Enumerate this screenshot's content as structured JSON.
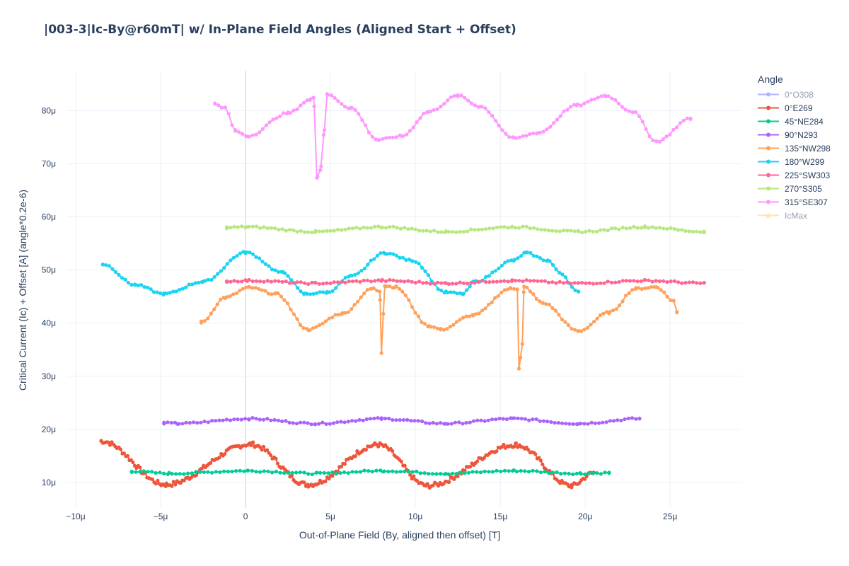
{
  "chart_data": {
    "type": "line",
    "title": "|003-3|Ic-By@r60mT| w/ In-Plane Field Angles (Aligned Start + Offset)",
    "xlabel": "Out-of-Plane Field (By, aligned then offset) [T]",
    "ylabel": "Critical Current (Ic) + Offset [A] (angle*0.2e-6)",
    "xlim": [
      -1.05e-05,
      2.92e-05
    ],
    "ylim": [
      5.2e-06,
      8.75e-05
    ],
    "x_ticks": [
      -1e-05,
      -5e-06,
      0,
      5e-06,
      1e-05,
      1.5e-05,
      2e-05,
      2.5e-05
    ],
    "x_tick_labels": [
      "−10μ",
      "−5μ",
      "0",
      "5μ",
      "10μ",
      "15μ",
      "20μ",
      "25μ"
    ],
    "y_ticks": [
      1e-05,
      2e-05,
      3e-05,
      4e-05,
      5e-05,
      6e-05,
      7e-05,
      8e-05
    ],
    "y_tick_labels": [
      "10μ",
      "20μ",
      "30μ",
      "40μ",
      "50μ",
      "60μ",
      "70μ",
      "80μ"
    ],
    "grid": true,
    "legend_title": "Angle",
    "legend_position": "right",
    "series": [
      {
        "name": "0°O308",
        "color": "#636efa",
        "visible": false,
        "marker": "circle",
        "points": []
      },
      {
        "name": "0°E269",
        "color": "#ef553b",
        "visible": true,
        "marker": "circle",
        "style": "wave",
        "xstart": -8.5e-06,
        "xend": 2.05e-05,
        "mean": 1.33e-05,
        "amp": 3.8e-06,
        "period": 7.2e-06,
        "phase_x": 6e-07,
        "noise": 4e-07,
        "n": 280,
        "anchors": [
          [
            -8.5e-06,
            1.78e-05
          ],
          [
            -4.7e-06,
            9.6e-06
          ],
          [
            3e-07,
            1.72e-05
          ],
          [
            3.7e-06,
            9.6e-06
          ],
          [
            7.8e-06,
            1.71e-05
          ],
          [
            1.07e-05,
            9.4e-06
          ],
          [
            1.59e-05,
            1.71e-05
          ],
          [
            1.92e-05,
            9.4e-06
          ],
          [
            2.05e-05,
            1.18e-05
          ]
        ]
      },
      {
        "name": "45°NE284",
        "color": "#00cc96",
        "visible": true,
        "marker": "circle",
        "anchors": [
          [
            -6.7e-06,
            1.21e-05
          ],
          [
            -4.5e-06,
            1.17e-05
          ],
          [
            1e-07,
            1.22e-05
          ],
          [
            4.2e-06,
            1.17e-05
          ],
          [
            8.1e-06,
            1.22e-05
          ],
          [
            1.18e-05,
            1.17e-05
          ],
          [
            1.58e-05,
            1.22e-05
          ],
          [
            1.97e-05,
            1.17e-05
          ],
          [
            2.14e-05,
            1.18e-05
          ]
        ],
        "n": 120
      },
      {
        "name": "90°N293",
        "color": "#ab63fa",
        "visible": true,
        "marker": "circle",
        "anchors": [
          [
            -4.8e-06,
            2.12e-05
          ],
          [
            -4e-06,
            2.11e-05
          ],
          [
            2e-07,
            2.2e-05
          ],
          [
            4.1e-06,
            2.11e-05
          ],
          [
            8e-06,
            2.2e-05
          ],
          [
            1.18e-05,
            2.11e-05
          ],
          [
            1.57e-05,
            2.2e-05
          ],
          [
            1.96e-05,
            2.11e-05
          ],
          [
            2.32e-05,
            2.2e-05
          ]
        ],
        "n": 130
      },
      {
        "name": "135°NW298",
        "color": "#ffa15a",
        "visible": true,
        "marker": "circle",
        "anchors": [
          [
            -2.6e-06,
            4.02e-05
          ],
          [
            -1.2e-06,
            4.48e-05
          ],
          [
            2e-07,
            4.67e-05
          ],
          [
            1.8e-06,
            4.55e-05
          ],
          [
            3.7e-06,
            3.88e-05
          ],
          [
            5.7e-06,
            4.18e-05
          ],
          [
            7.5e-06,
            4.65e-05
          ],
          [
            7.9e-06,
            4.6e-05
          ],
          [
            8e-06,
            3.45e-05
          ],
          [
            8.2e-06,
            4.7e-05
          ],
          [
            8.8e-06,
            4.68e-05
          ],
          [
            1.08e-05,
            3.95e-05
          ],
          [
            1.15e-05,
            3.88e-05
          ],
          [
            1.34e-05,
            4.15e-05
          ],
          [
            1.56e-05,
            4.65e-05
          ],
          [
            1.6e-05,
            4.65e-05
          ],
          [
            1.61e-05,
            3.15e-05
          ],
          [
            1.63e-05,
            3.6e-05
          ],
          [
            1.64e-05,
            4.68e-05
          ],
          [
            1.75e-05,
            4.38e-05
          ],
          [
            1.96e-05,
            3.85e-05
          ],
          [
            2.14e-05,
            4.2e-05
          ],
          [
            2.3e-05,
            4.65e-05
          ],
          [
            2.42e-05,
            4.68e-05
          ],
          [
            2.52e-05,
            4.42e-05
          ],
          [
            2.54e-05,
            4.21e-05
          ]
        ],
        "n": 150
      },
      {
        "name": "180°W299",
        "color": "#19d3f3",
        "visible": true,
        "marker": "circle",
        "anchors": [
          [
            -8.4e-06,
            5.11e-05
          ],
          [
            -6.5e-06,
            4.72e-05
          ],
          [
            -4.8e-06,
            4.55e-05
          ],
          [
            -2.5e-06,
            4.78e-05
          ],
          [
            0,
            5.33e-05
          ],
          [
            2.2e-06,
            4.95e-05
          ],
          [
            3.5e-06,
            4.55e-05
          ],
          [
            4.8e-06,
            4.58e-05
          ],
          [
            6.2e-06,
            4.88e-05
          ],
          [
            8.2e-06,
            5.32e-05
          ],
          [
            9.8e-06,
            5.18e-05
          ],
          [
            1.18e-05,
            4.58e-05
          ],
          [
            1.28e-05,
            4.55e-05
          ],
          [
            1.35e-05,
            4.78e-05
          ],
          [
            1.58e-05,
            5.18e-05
          ],
          [
            1.65e-05,
            5.32e-05
          ],
          [
            1.78e-05,
            5.18e-05
          ],
          [
            1.85e-05,
            4.95e-05
          ],
          [
            1.96e-05,
            4.58e-05
          ]
        ],
        "n": 150
      },
      {
        "name": "225°SW303",
        "color": "#ff6692",
        "visible": true,
        "marker": "circle",
        "anchors": [
          [
            -1.1e-06,
            4.79e-05
          ],
          [
            1e-07,
            4.8e-05
          ],
          [
            4.1e-06,
            4.75e-05
          ],
          [
            8e-06,
            4.8e-05
          ],
          [
            1.18e-05,
            4.75e-05
          ],
          [
            1.57e-05,
            4.8e-05
          ],
          [
            1.96e-05,
            4.75e-05
          ],
          [
            2.35e-05,
            4.8e-05
          ],
          [
            2.7e-05,
            4.75e-05
          ]
        ],
        "n": 130
      },
      {
        "name": "270°S305",
        "color": "#b6e880",
        "visible": true,
        "marker": "circle",
        "anchors": [
          [
            -1.1e-06,
            5.8e-05
          ],
          [
            1e-07,
            5.81e-05
          ],
          [
            4.1e-06,
            5.72e-05
          ],
          [
            8e-06,
            5.81e-05
          ],
          [
            1.18e-05,
            5.72e-05
          ],
          [
            1.57e-05,
            5.81e-05
          ],
          [
            1.96e-05,
            5.72e-05
          ],
          [
            2.35e-05,
            5.81e-05
          ],
          [
            2.7e-05,
            5.72e-05
          ]
        ],
        "n": 130
      },
      {
        "name": "315°SE307",
        "color": "#ff97ff",
        "visible": true,
        "marker": "circle",
        "anchors": [
          [
            -1.8e-06,
            8.13e-05
          ],
          [
            -1.2e-06,
            8.05e-05
          ],
          [
            -6e-07,
            7.62e-05
          ],
          [
            1e-07,
            7.52e-05
          ],
          [
            2.5e-06,
            7.95e-05
          ],
          [
            3.8e-06,
            8.2e-05
          ],
          [
            4e-06,
            8.25e-05
          ],
          [
            4.2e-06,
            6.75e-05
          ],
          [
            4.4e-06,
            6.88e-05
          ],
          [
            4.6e-06,
            7.55e-05
          ],
          [
            4.8e-06,
            8.3e-05
          ],
          [
            6.2e-06,
            8.05e-05
          ],
          [
            7.8e-06,
            7.45e-05
          ],
          [
            9.2e-06,
            7.52e-05
          ],
          [
            1.08e-05,
            7.98e-05
          ],
          [
            1.25e-05,
            8.28e-05
          ],
          [
            1.38e-05,
            8.08e-05
          ],
          [
            1.58e-05,
            7.48e-05
          ],
          [
            1.72e-05,
            7.58e-05
          ],
          [
            1.95e-05,
            8.1e-05
          ],
          [
            2.12e-05,
            8.28e-05
          ],
          [
            2.28e-05,
            7.98e-05
          ],
          [
            2.42e-05,
            7.42e-05
          ],
          [
            2.62e-05,
            7.85e-05
          ]
        ],
        "n": 140
      },
      {
        "name": "IcMax",
        "color": "#fecb52",
        "visible": false,
        "marker": "star",
        "points": []
      }
    ]
  }
}
